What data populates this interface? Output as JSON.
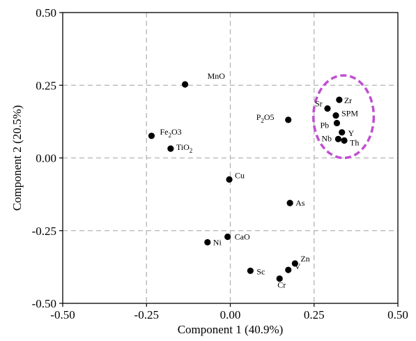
{
  "chart_data": {
    "type": "scatter",
    "xlabel": "Component 1 (40.9%)",
    "ylabel": "Component 2 (20.5%)",
    "xlim": [
      -0.5,
      0.5
    ],
    "ylim": [
      -0.5,
      0.5
    ],
    "xticks": [
      -0.5,
      -0.25,
      0.0,
      0.25,
      0.5
    ],
    "yticks": [
      -0.5,
      -0.25,
      0.0,
      0.25,
      0.5
    ],
    "xtick_labels": [
      "-0.50",
      "-0.25",
      "0.00",
      "0.25",
      "0.50"
    ],
    "ytick_labels": [
      "-0.50",
      "-0.25",
      "0.00",
      "0.25",
      "0.50"
    ],
    "grid": true,
    "grid_style": "dashed",
    "marker_color": "#000000",
    "highlight_color": "#c04fd0",
    "highlight": {
      "shape": "ellipse",
      "center": [
        0.338,
        0.142
      ],
      "radii": [
        0.09,
        0.142
      ],
      "members": [
        "Zr",
        "Sr",
        "SPM",
        "Pb",
        "Y",
        "Nb",
        "Th"
      ]
    },
    "points": [
      {
        "label": "MnO",
        "main": "MnO",
        "sub": "",
        "tail": "",
        "x": -0.135,
        "y": 0.253
      },
      {
        "label": "Fe2O3",
        "main": "Fe",
        "sub": "2",
        "tail": "O3",
        "x": -0.235,
        "y": 0.076
      },
      {
        "label": "TiO2",
        "main": "TiO",
        "sub": "2",
        "tail": "",
        "x": -0.178,
        "y": 0.032
      },
      {
        "label": "P2O5",
        "main": "P",
        "sub": "2",
        "tail": "O5",
        "x": 0.173,
        "y": 0.131
      },
      {
        "label": "Cu",
        "main": "Cu",
        "sub": "",
        "tail": "",
        "x": -0.003,
        "y": -0.074
      },
      {
        "label": "As",
        "main": "As",
        "sub": "",
        "tail": "",
        "x": 0.178,
        "y": -0.155
      },
      {
        "label": "CaO",
        "main": "CaO",
        "sub": "",
        "tail": "",
        "x": -0.008,
        "y": -0.271
      },
      {
        "label": "Ni",
        "main": "Ni",
        "sub": "",
        "tail": "",
        "x": -0.068,
        "y": -0.29
      },
      {
        "label": "Sc",
        "main": "Sc",
        "sub": "",
        "tail": "",
        "x": 0.06,
        "y": -0.388
      },
      {
        "label": "Zn",
        "main": "Zn",
        "sub": "",
        "tail": "",
        "x": 0.193,
        "y": -0.363
      },
      {
        "label": "V",
        "main": "V",
        "sub": "",
        "tail": "",
        "x": 0.173,
        "y": -0.385
      },
      {
        "label": "Cr",
        "main": "Cr",
        "sub": "",
        "tail": "",
        "x": 0.147,
        "y": -0.415
      },
      {
        "label": "Zr",
        "main": "Zr",
        "sub": "",
        "tail": "",
        "x": 0.325,
        "y": 0.2
      },
      {
        "label": "Sr",
        "main": "Sr",
        "sub": "",
        "tail": "",
        "x": 0.29,
        "y": 0.17
      },
      {
        "label": "SPM",
        "main": "SPM",
        "sub": "",
        "tail": "",
        "x": 0.315,
        "y": 0.146
      },
      {
        "label": "Pb",
        "main": "Pb",
        "sub": "",
        "tail": "",
        "x": 0.318,
        "y": 0.12
      },
      {
        "label": "Y",
        "main": "Y",
        "sub": "",
        "tail": "",
        "x": 0.333,
        "y": 0.088
      },
      {
        "label": "Nb",
        "main": "Nb",
        "sub": "",
        "tail": "",
        "x": 0.322,
        "y": 0.065
      },
      {
        "label": "Th",
        "main": "Th",
        "sub": "",
        "tail": "",
        "x": 0.34,
        "y": 0.06
      }
    ]
  }
}
